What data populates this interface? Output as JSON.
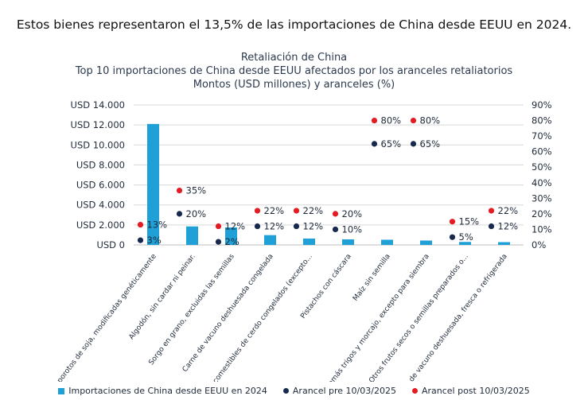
{
  "headline": "Estos bienes representaron el 13,5% de las importaciones de China desde EEUU en 2024.",
  "chart_data": {
    "type": "bar",
    "title": "Retaliación de China",
    "subtitle": "Top 10 importaciones de China desde EEUU afectados por los aranceles retaliatorios",
    "subtitle2": "Montos (USD millones) y aranceles (%)",
    "categories": [
      "Otros porotos de soja, modificadas genéticamente",
      "Algodón, sin cardar ni peinar.",
      "Sorgo en grano, excluidas las semillas",
      "Carne de vacuno deshuesada congelada",
      "Despojos comestibles de cerdo congelados (excepto...",
      "Pistachos con cáscara",
      "Maíz sin semilla",
      "Los demás trigos y morcajo, excepto para siembra",
      "Otros frutos secos o semillas preparados o...",
      "Carne de vacuno deshuesada, fresca o refrigerada"
    ],
    "series": [
      {
        "name": "Importaciones de China desde EEUU en 2024",
        "type": "bar",
        "axis": "left",
        "color": "#1fa1d8",
        "values": [
          12100,
          1850,
          1750,
          980,
          640,
          560,
          520,
          440,
          300,
          280
        ]
      },
      {
        "name": "Arancel pre 10/03/2025",
        "type": "scatter",
        "axis": "right",
        "color": "#17294d",
        "values": [
          3,
          20,
          2,
          12,
          12,
          10,
          65,
          65,
          5,
          12
        ]
      },
      {
        "name": "Arancel post 10/03/2025",
        "type": "scatter",
        "axis": "right",
        "color": "#e31b23",
        "values": [
          13,
          35,
          12,
          22,
          22,
          20,
          80,
          80,
          15,
          22
        ]
      }
    ],
    "point_labels": {
      "pre": [
        "3%",
        "20%",
        "2%",
        "12%",
        "12%",
        "10%",
        "65%",
        "65%",
        "5%",
        "12%"
      ],
      "post": [
        "13%",
        "35%",
        "12%",
        "22%",
        "22%",
        "20%",
        "80%",
        "80%",
        "15%",
        "22%"
      ]
    },
    "yleft_ticks": [
      "USD 0",
      "USD 2.000",
      "USD 4.000",
      "USD 6.000",
      "USD 8.000",
      "USD 10.000",
      "USD 12.000",
      "USD 14.000"
    ],
    "yright_ticks": [
      "0%",
      "10%",
      "20%",
      "30%",
      "40%",
      "50%",
      "60%",
      "70%",
      "80%",
      "90%"
    ],
    "ylim_left": [
      0,
      14000
    ],
    "ylim_right": [
      0,
      90
    ],
    "grid": true,
    "legend_position": "bottom"
  }
}
